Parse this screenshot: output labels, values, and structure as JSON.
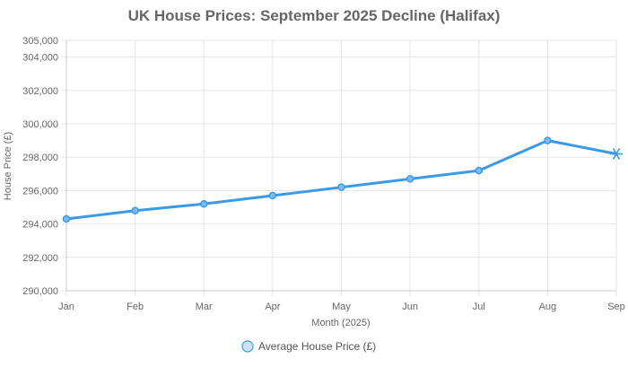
{
  "chart_data": {
    "type": "line",
    "title": "UK House Prices: September 2025 Decline (Halifax)",
    "xlabel": "Month (2025)",
    "ylabel": "House Price (£)",
    "categories": [
      "Jan",
      "Feb",
      "Mar",
      "Apr",
      "May",
      "Jun",
      "Jul",
      "Aug",
      "Sep"
    ],
    "ylim": [
      290000,
      305000
    ],
    "yticks": [
      290000,
      292000,
      294000,
      296000,
      298000,
      300000,
      302000,
      304000,
      305000
    ],
    "ytick_labels": [
      "290,000",
      "292,000",
      "294,000",
      "296,000",
      "298,000",
      "300,000",
      "302,000",
      "304,000",
      "305,000"
    ],
    "series": [
      {
        "name": "Average House Price (£)",
        "values": [
          294300,
          294800,
          295200,
          295700,
          296200,
          296700,
          297200,
          299000,
          298200
        ],
        "color": "#3a9ae8",
        "last_point_marker": "star"
      }
    ],
    "grid": true,
    "legend_position": "bottom"
  }
}
